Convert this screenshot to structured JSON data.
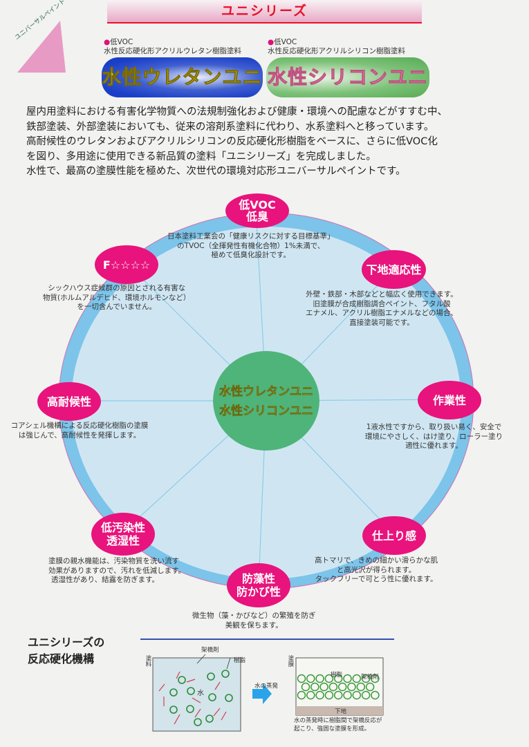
{
  "header": {
    "title": "ユニシリーズ",
    "corner_label": "ユニバーサルペイント"
  },
  "products": [
    {
      "bullet": "低VOC",
      "subtitle": "水性反応硬化形アクリルウレタン樹脂塗料",
      "name": "水性ウレタンユニ"
    },
    {
      "bullet": "低VOC",
      "subtitle": "水性反応硬化形アクリルシリコン樹脂塗料",
      "name": "水性シリコンユニ"
    }
  ],
  "intro": [
    "屋内用塗料における有害化学物質への法規制強化および健康・環境への配慮などがすすむ中、",
    "鉄部塗装、外部塗装においても、従来の溶剤系塗料に代わり、水系塗料へと移っています。",
    "高耐候性のウレタンおよびアクリルシリコンの反応硬化形樹脂をベースに、さらに低VOC化",
    "を図り、多用途に使用できる新品質の塗料「ユニシリーズ」を完成しました。",
    "水性で、最高の塗膜性能を極めた、次世代の環境対応形ユニバーサルペイントです。"
  ],
  "center": [
    "水性ウレタンユニ",
    "水性シリコンユニ"
  ],
  "features": [
    {
      "label": [
        "低VOC",
        "低臭"
      ],
      "desc": [
        "日本塗料工業会の「健康リスクに対する目標基準」",
        "のTVOC（全揮発性有機化合物）1%未満で、",
        "極めて低臭化設計です。"
      ]
    },
    {
      "label": [
        "F☆☆☆☆"
      ],
      "desc": [
        "シックハウス症候群の原因とされる有害な",
        "物質(ホルムアルデヒド、環境ホルモンなど）",
        "を一切含んでいません。"
      ]
    },
    {
      "label": [
        "下地適応性"
      ],
      "desc": [
        "外壁・鉄部・木部などと幅広く使用できます。",
        "旧塗膜が合成樹脂調合ペイント、フタル酸",
        "エナメル、アクリル樹脂エナメルなどの場合、",
        "直接塗装可能です。"
      ]
    },
    {
      "label": [
        "高耐候性"
      ],
      "desc": [
        "コアシェル機構による反応硬化樹脂の塗膜",
        "は強じんで、高耐候性を発揮します。"
      ]
    },
    {
      "label": [
        "作業性"
      ],
      "desc": [
        "1液水性ですから、取り扱い易く、安全で",
        "環境にやさしく、はけ塗り、ローラー塗り",
        "適性に優れます。"
      ]
    },
    {
      "label": [
        "低汚染性",
        "透湿性"
      ],
      "desc": [
        "塗膜の親水機能は、汚染物質を洗い流す",
        "効果がありますので、汚れを低減します。",
        "透湿性があり、結露を防ぎます。"
      ]
    },
    {
      "label": [
        "仕上り感"
      ],
      "desc": [
        "高トマリで、きめの細かい滑らかな肌",
        "と高光沢が得られます。",
        "タックフリーで可とう性に優れます。"
      ]
    },
    {
      "label": [
        "防藻性",
        "防かび性"
      ],
      "desc": [
        "微生物（藻・かびなど）の繁殖を防ぎ",
        "美観を保ちます。"
      ]
    }
  ],
  "mechanism": {
    "title": [
      "ユニシリーズの",
      "反応硬化機構"
    ],
    "left_side_label": "塗料",
    "crosslinker": "架橋剤",
    "resin": "樹脂",
    "water": "水",
    "arrow_label": "水の蒸発",
    "right_side_label": "塗膜",
    "substrate": "下地",
    "caption": [
      "水の蒸発時に樹脂間で架橋反応が",
      "起こり、強固な塗膜を形成。"
    ]
  },
  "colors": {
    "accent_pink": "#e8137c",
    "header_red": "#e8102a",
    "ring_blue": "#7cc4ea",
    "fill_blue": "#cfe6f2",
    "center_green": "#4fb47a"
  }
}
